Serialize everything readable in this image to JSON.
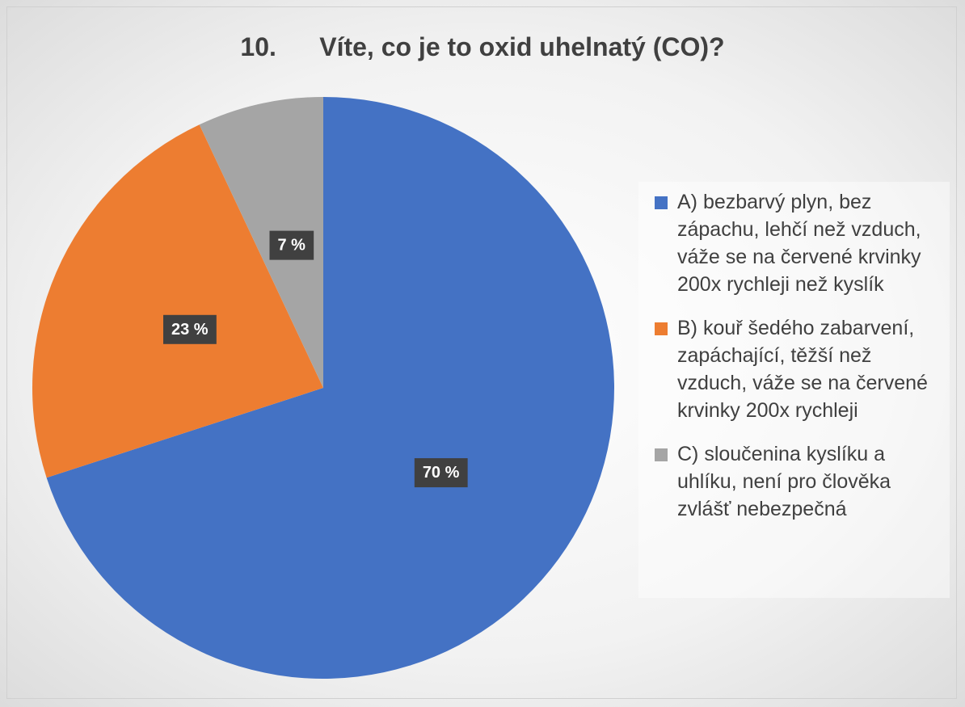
{
  "chart_data": {
    "type": "pie",
    "title": "10.      Víte, co je to oxid uhelnatý (CO)?",
    "categories": [
      "A) bezbarvý plyn, bez zápachu, lehčí než vzduch, váže se na červené krvinky 200x rychleji než kyslík",
      "B) kouř šedého zabarvení, zapáchající, těžší než vzduch, váže se na červené krvinky 200x rychleji",
      "C) sloučenina kyslíku a uhlíku, není pro člověka zvlášť nebezpečná"
    ],
    "values": [
      70,
      23,
      7
    ],
    "value_labels": [
      "70 %",
      "23 %",
      "7 %"
    ],
    "colors": [
      "#4472c4",
      "#ed7d31",
      "#a5a5a5"
    ],
    "legend": "right"
  }
}
